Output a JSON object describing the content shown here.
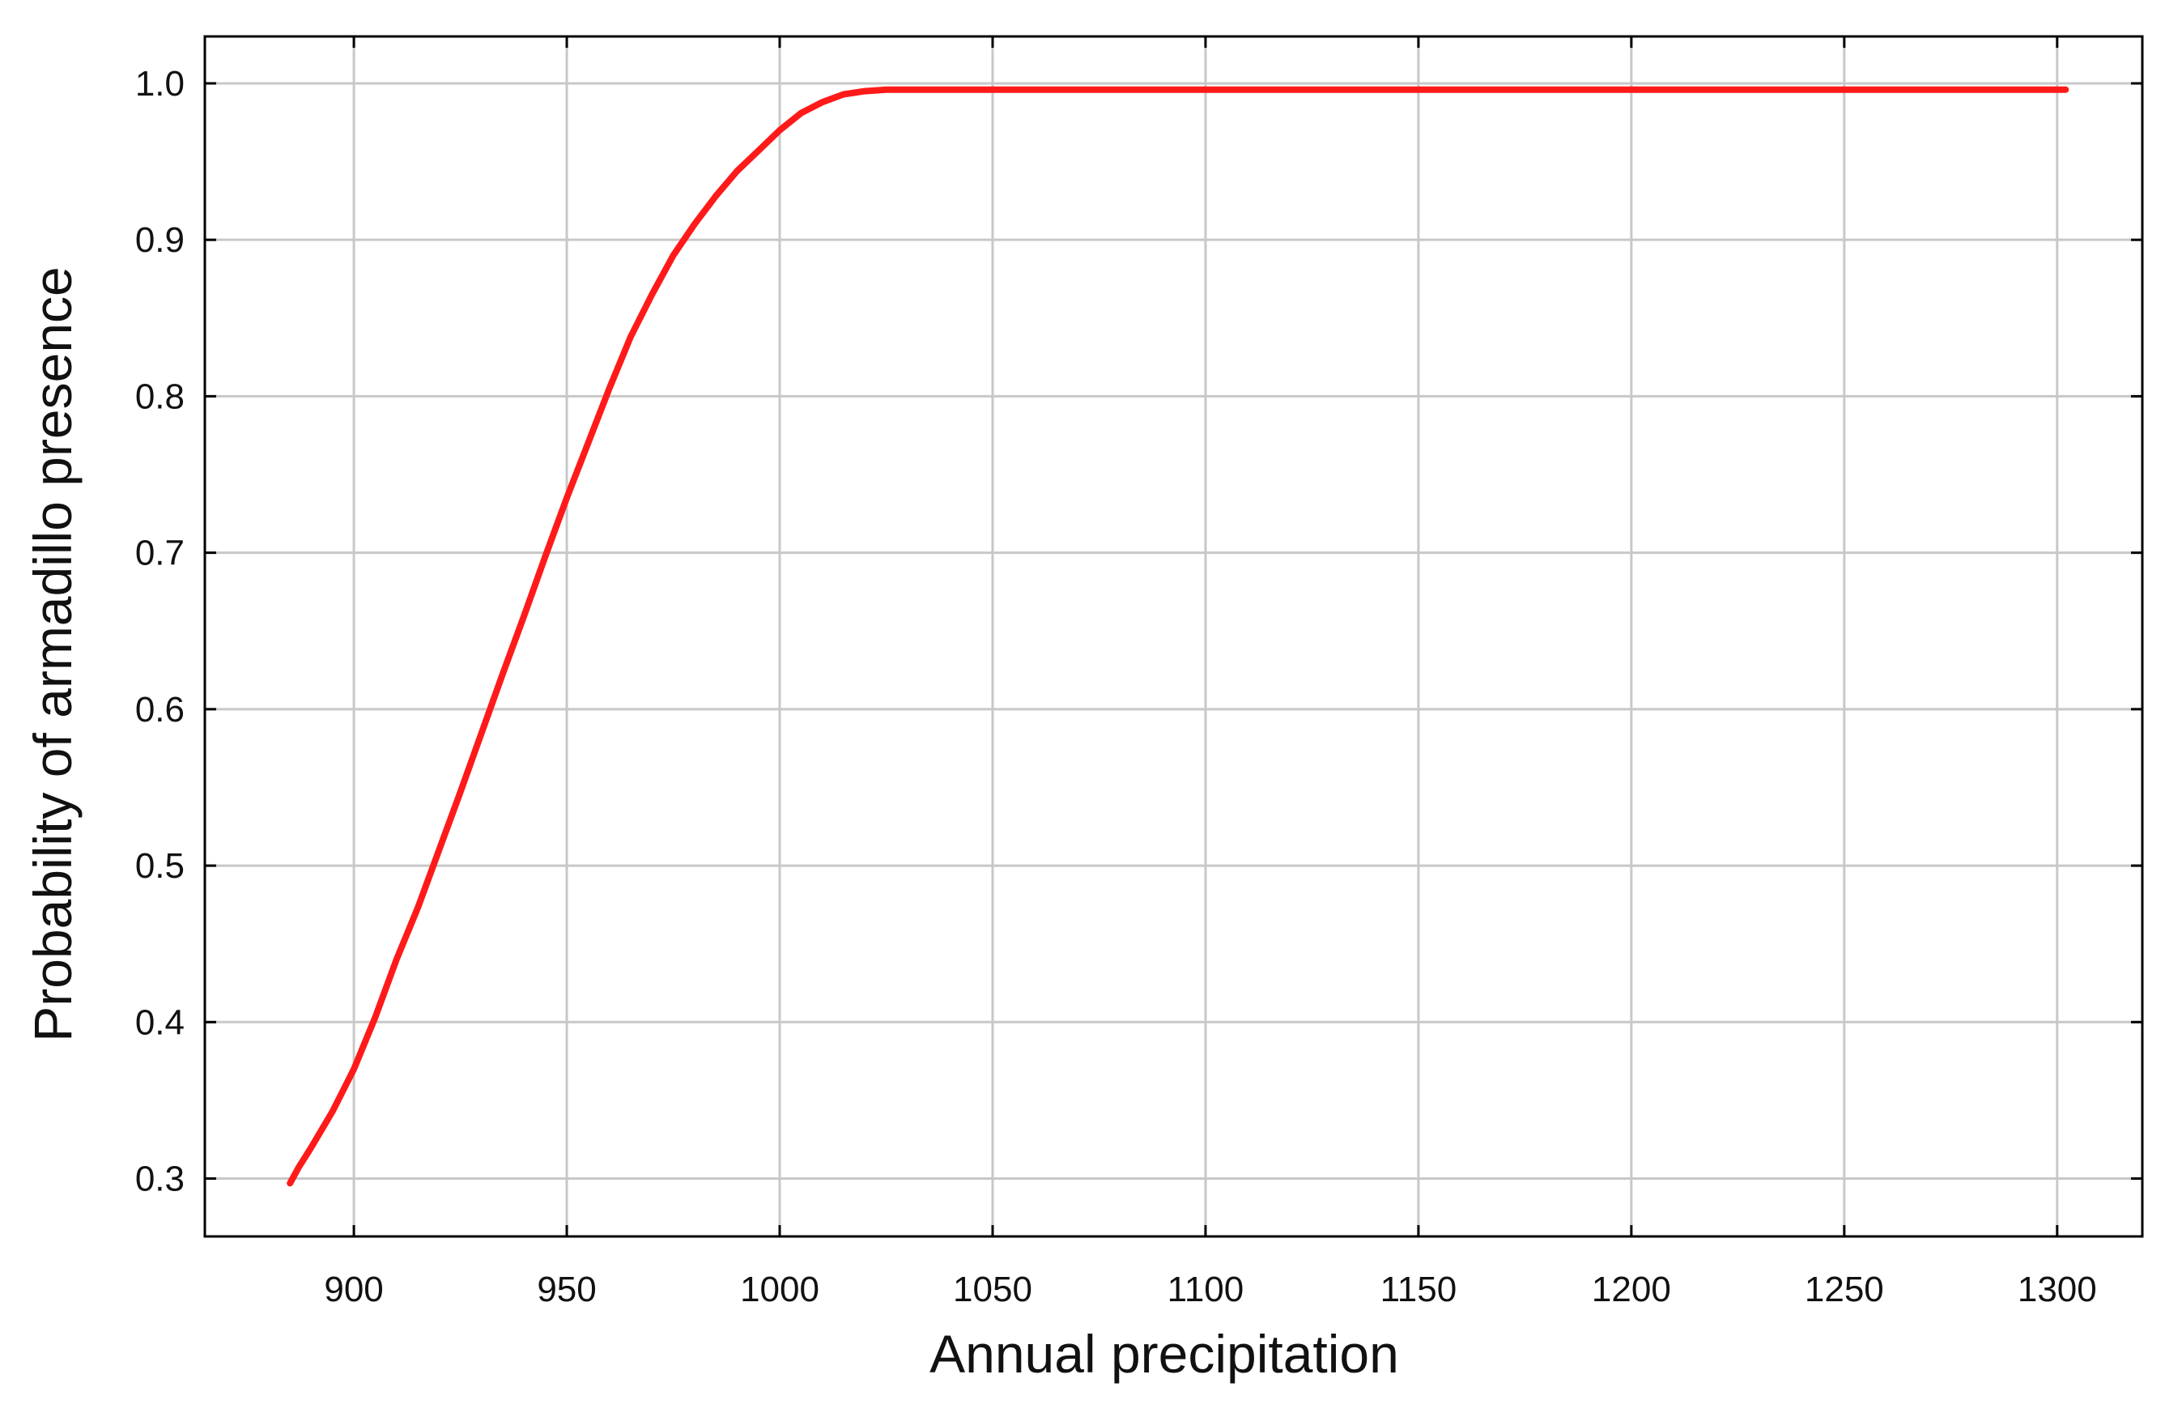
{
  "chart_data": {
    "type": "line",
    "title": "",
    "xlabel": "Annual precipitation",
    "ylabel": "Probability of armadillo presence",
    "xlim": [
      865,
      1320
    ],
    "ylim": [
      0.263,
      1.03
    ],
    "xticks": [
      900,
      950,
      1000,
      1050,
      1100,
      1150,
      1200,
      1250,
      1300
    ],
    "yticks": [
      0.3,
      0.4,
      0.5,
      0.6,
      0.7,
      0.8,
      0.9,
      1.0
    ],
    "xtick_labels": [
      "900",
      "950",
      "1000",
      "1050",
      "1100",
      "1150",
      "1200",
      "1250",
      "1300"
    ],
    "ytick_labels": [
      "0.3",
      "0.4",
      "0.5",
      "0.6",
      "0.7",
      "0.8",
      "0.9",
      "1.0"
    ],
    "grid": true,
    "legend": "none",
    "series": [
      {
        "color": "#ff1a1a",
        "x": [
          885,
          887,
          890,
          895,
          900,
          905,
          910,
          915,
          920,
          925,
          930,
          935,
          940,
          945,
          950,
          955,
          960,
          965,
          970,
          975,
          980,
          985,
          990,
          995,
          1000,
          1005,
          1010,
          1015,
          1020,
          1025,
          1050,
          1100,
          1150,
          1200,
          1250,
          1302
        ],
        "y": [
          0.297,
          0.307,
          0.32,
          0.343,
          0.37,
          0.403,
          0.44,
          0.473,
          0.51,
          0.547,
          0.585,
          0.623,
          0.66,
          0.698,
          0.735,
          0.77,
          0.805,
          0.838,
          0.865,
          0.89,
          0.91,
          0.928,
          0.944,
          0.957,
          0.97,
          0.981,
          0.988,
          0.993,
          0.995,
          0.996,
          0.996,
          0.996,
          0.996,
          0.996,
          0.996,
          0.996
        ]
      }
    ]
  },
  "colors": {
    "background": "#ffffff",
    "grid": "#c8c8c8",
    "axis": "#000000",
    "line": "#ff1a1a"
  }
}
